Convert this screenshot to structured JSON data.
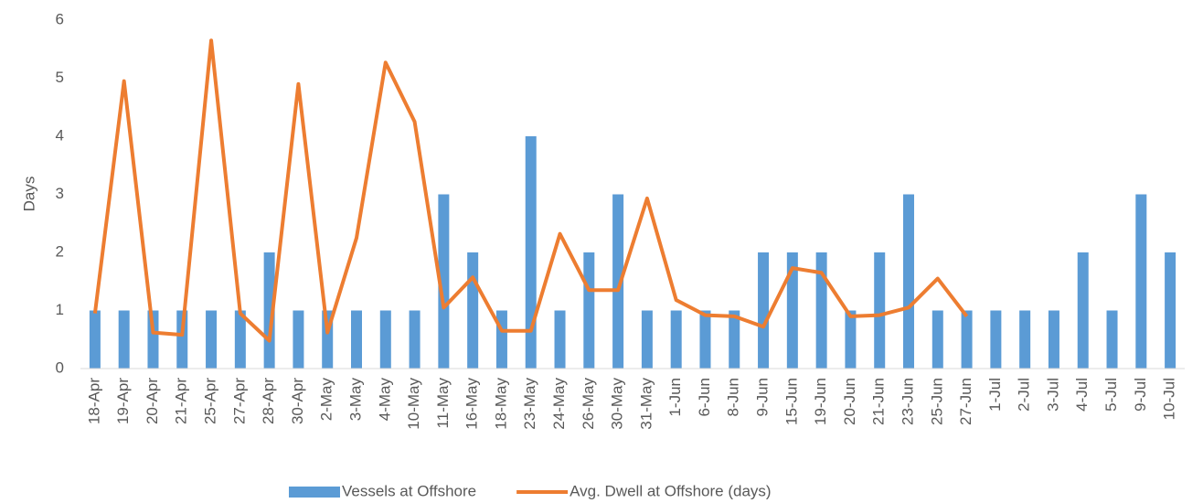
{
  "chart_data": {
    "type": "bar_line",
    "y_label": "Days",
    "categories": [
      "18-Apr",
      "19-Apr",
      "20-Apr",
      "21-Apr",
      "25-Apr",
      "27-Apr",
      "28-Apr",
      "30-Apr",
      "2-May",
      "3-May",
      "4-May",
      "10-May",
      "11-May",
      "16-May",
      "18-May",
      "23-May",
      "24-May",
      "26-May",
      "30-May",
      "31-May",
      "1-Jun",
      "6-Jun",
      "8-Jun",
      "9-Jun",
      "15-Jun",
      "19-Jun",
      "20-Jun",
      "21-Jun",
      "23-Jun",
      "25-Jun",
      "27-Jun",
      "1-Jul",
      "2-Jul",
      "3-Jul",
      "4-Jul",
      "5-Jul",
      "9-Jul",
      "10-Jul"
    ],
    "series": [
      {
        "name": "Vessels at Offshore",
        "type": "bar",
        "color": "#5b9bd5",
        "values": [
          1,
          1,
          1,
          1,
          1,
          1,
          2,
          1,
          1,
          1,
          1,
          1,
          3,
          2,
          1,
          4,
          1,
          2,
          3,
          1,
          1,
          1,
          1,
          2,
          2,
          2,
          1,
          2,
          3,
          1,
          1,
          1,
          1,
          1,
          2,
          1,
          3,
          2
        ]
      },
      {
        "name": "Avg. Dwell at Offshore (days)",
        "type": "line",
        "color": "#ed7d31",
        "values": [
          0.95,
          4.95,
          0.62,
          0.58,
          5.65,
          0.95,
          0.48,
          4.9,
          0.62,
          2.25,
          5.27,
          4.25,
          1.05,
          1.57,
          0.65,
          0.65,
          2.32,
          1.35,
          1.35,
          2.93,
          1.18,
          0.92,
          0.9,
          0.72,
          1.73,
          1.65,
          0.9,
          0.92,
          1.05,
          1.55,
          0.9,
          null,
          null,
          null,
          null,
          null,
          null,
          null
        ]
      }
    ],
    "ylim": [
      0,
      6
    ],
    "yticks": [
      0,
      1,
      2,
      3,
      4,
      5,
      6
    ],
    "grid": false,
    "legend": "bottom"
  }
}
